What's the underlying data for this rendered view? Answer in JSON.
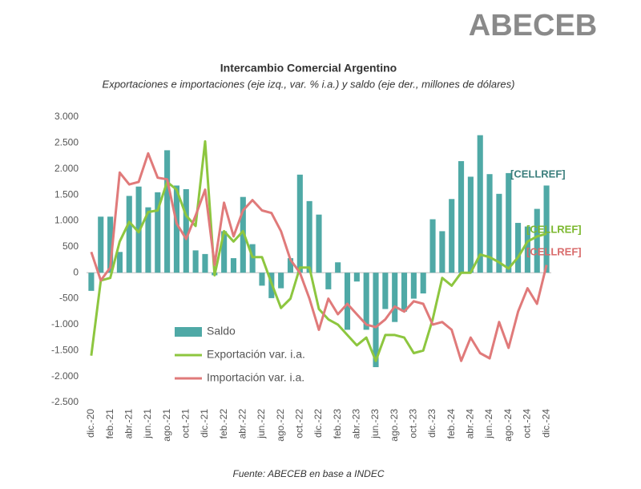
{
  "logo": "ABECEB",
  "chart_data": {
    "type": "bar-line",
    "title": "Intercambio Comercial Argentino",
    "subtitle": "Exportaciones e importaciones (eje izq., var. % i.a.) y saldo (eje der., millones de dólares)",
    "source": "Fuente: ABECEB en base a INDEC",
    "categories": [
      "dic.-20",
      null,
      "feb.-21",
      null,
      "abr.-21",
      null,
      "jun.-21",
      null,
      "ago.-21",
      null,
      "oct.-21",
      null,
      "dic.-21",
      null,
      "feb.-22",
      null,
      "abr.-22",
      null,
      "jun.-22",
      null,
      "ago.-22",
      null,
      "oct.-22",
      null,
      "dic.-22",
      null,
      "feb.-23",
      null,
      "abr.-23",
      null,
      "jun.-23",
      null,
      "ago.-23",
      null,
      "oct.-23",
      null,
      "dic.-23",
      null,
      "feb.-24",
      null,
      "abr.-24",
      null,
      "jun.-24",
      null,
      "ago.-24",
      null,
      "oct.-24",
      null,
      "dic.-24"
    ],
    "series": [
      {
        "name": "Saldo",
        "kind": "bar",
        "color": "#4fa9a6",
        "values": [
          -350,
          1080,
          1080,
          400,
          1480,
          1660,
          1260,
          1550,
          2360,
          1680,
          1610,
          430,
          360,
          -50,
          800,
          280,
          1460,
          550,
          -250,
          -490,
          -300,
          280,
          1890,
          1380,
          1120,
          -320,
          200,
          -1100,
          -170,
          -1100,
          -1820,
          -700,
          -950,
          -750,
          -500,
          -400,
          1030,
          800,
          1420,
          2150,
          1850,
          2650,
          1900,
          1520,
          1920,
          960,
          890,
          1230,
          1680
        ]
      },
      {
        "name": "Exportación var. i.a.",
        "kind": "line",
        "color": "#8dc63f",
        "values": [
          -1600,
          -150,
          -100,
          600,
          980,
          780,
          1170,
          1200,
          1750,
          1600,
          1100,
          900,
          2530,
          -50,
          800,
          600,
          800,
          300,
          300,
          -200,
          -680,
          -500,
          100,
          100,
          -700,
          -900,
          -1000,
          -1200,
          -1400,
          -1250,
          -1700,
          -1200,
          -1200,
          -1250,
          -1550,
          -1500,
          -900,
          -100,
          -250,
          0,
          0,
          350,
          300,
          200,
          80,
          300,
          600,
          700,
          750
        ]
      },
      {
        "name": "Importación var. i.a.",
        "kind": "line",
        "color": "#e07a7a",
        "values": [
          400,
          -150,
          100,
          1930,
          1700,
          1750,
          2300,
          1830,
          1800,
          950,
          650,
          1100,
          1600,
          150,
          1350,
          700,
          1200,
          1400,
          1200,
          1150,
          800,
          250,
          0,
          -500,
          -1100,
          -500,
          -800,
          -600,
          -800,
          -1000,
          -1050,
          -900,
          -650,
          -750,
          -550,
          -600,
          -1000,
          -950,
          -1100,
          -1700,
          -1250,
          -1550,
          -1650,
          -950,
          -1450,
          -750,
          -300,
          -600,
          150
        ]
      }
    ],
    "annotations": [
      {
        "text": "[CELLREF]",
        "color": "#3c7f7d"
      },
      {
        "text": "[CELLREF]",
        "color": "#7cb82f"
      },
      {
        "text": "[CELLREF]",
        "color": "#d96c6c"
      }
    ],
    "ylim": [
      -2500,
      3000
    ],
    "yticks": [
      {
        "value": 3000,
        "label": "3.000"
      },
      {
        "value": 2500,
        "label": "2.500"
      },
      {
        "value": 2000,
        "label": "2.000"
      },
      {
        "value": 1500,
        "label": "1.500"
      },
      {
        "value": 1000,
        "label": "1.000"
      },
      500,
      0,
      -500,
      {
        "value": -1000,
        "label": "-1.000"
      },
      {
        "value": -1500,
        "label": "-1.500"
      },
      {
        "value": -2000,
        "label": "-2.000"
      },
      {
        "value": -2500,
        "label": "-2.500"
      }
    ],
    "grid": false,
    "legend": "left"
  }
}
